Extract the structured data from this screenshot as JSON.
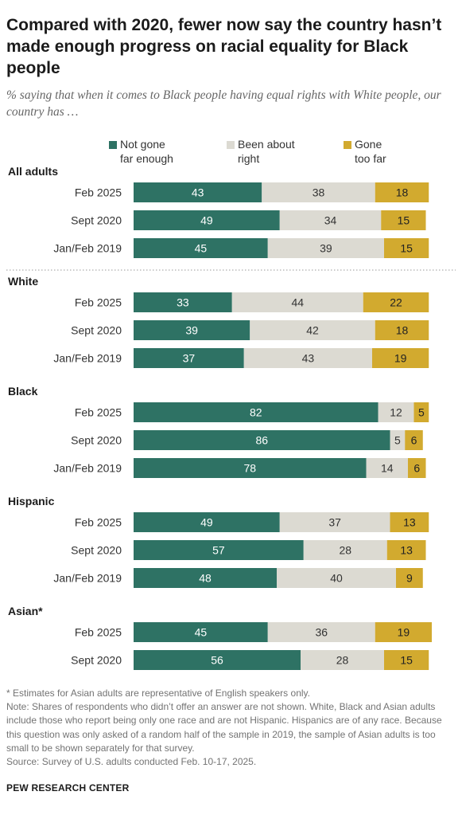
{
  "title": "Compared with 2020, fewer now say the country hasn’t made enough progress on racial equality for Black people",
  "subtitle": "% saying that when it comes to Black people having equal rights with White people, our country has …",
  "notes": [
    "* Estimates for Asian adults are representative of English speakers only.",
    "Note: Shares of respondents who didn’t offer an answer are not shown. White, Black and Asian adults include those who report being only one race and are not Hispanic. Hispanics are of any race. Because this question was only asked of a random half of the sample in 2019, the sample of Asian adults is too small to be shown separately for that survey.",
    "Source: Survey of U.S. adults conducted Feb. 10-17, 2025."
  ],
  "source_org": "PEW RESEARCH CENTER",
  "colors": {
    "not_far_enough": "#2e7264",
    "about_right": "#dcdad2",
    "too_far": "#d2aa2f"
  },
  "chart_data": {
    "type": "bar",
    "orientation": "horizontal",
    "stacked": true,
    "xlim": [
      0,
      100
    ],
    "legend": [
      {
        "key": "not_far_enough",
        "line1": "Not gone",
        "line2": "far enough"
      },
      {
        "key": "about_right",
        "line1": "Been about",
        "line2": "right"
      },
      {
        "key": "too_far",
        "line1": "Gone",
        "line2": "too far"
      }
    ],
    "groups": [
      {
        "name": "All adults",
        "rows": [
          {
            "label": "Feb 2025",
            "not_far_enough": 43,
            "about_right": 38,
            "too_far": 18
          },
          {
            "label": "Sept 2020",
            "not_far_enough": 49,
            "about_right": 34,
            "too_far": 15
          },
          {
            "label": "Jan/Feb 2019",
            "not_far_enough": 45,
            "about_right": 39,
            "too_far": 15
          }
        ]
      },
      {
        "name": "White",
        "rows": [
          {
            "label": "Feb 2025",
            "not_far_enough": 33,
            "about_right": 44,
            "too_far": 22
          },
          {
            "label": "Sept 2020",
            "not_far_enough": 39,
            "about_right": 42,
            "too_far": 18
          },
          {
            "label": "Jan/Feb 2019",
            "not_far_enough": 37,
            "about_right": 43,
            "too_far": 19
          }
        ]
      },
      {
        "name": "Black",
        "rows": [
          {
            "label": "Feb 2025",
            "not_far_enough": 82,
            "about_right": 12,
            "too_far": 5
          },
          {
            "label": "Sept 2020",
            "not_far_enough": 86,
            "about_right": 5,
            "too_far": 6
          },
          {
            "label": "Jan/Feb 2019",
            "not_far_enough": 78,
            "about_right": 14,
            "too_far": 6
          }
        ]
      },
      {
        "name": "Hispanic",
        "rows": [
          {
            "label": "Feb 2025",
            "not_far_enough": 49,
            "about_right": 37,
            "too_far": 13
          },
          {
            "label": "Sept 2020",
            "not_far_enough": 57,
            "about_right": 28,
            "too_far": 13
          },
          {
            "label": "Jan/Feb 2019",
            "not_far_enough": 48,
            "about_right": 40,
            "too_far": 9
          }
        ]
      },
      {
        "name": "Asian*",
        "rows": [
          {
            "label": "Feb 2025",
            "not_far_enough": 45,
            "about_right": 36,
            "too_far": 19
          },
          {
            "label": "Sept 2020",
            "not_far_enough": 56,
            "about_right": 28,
            "too_far": 15
          }
        ]
      }
    ]
  }
}
